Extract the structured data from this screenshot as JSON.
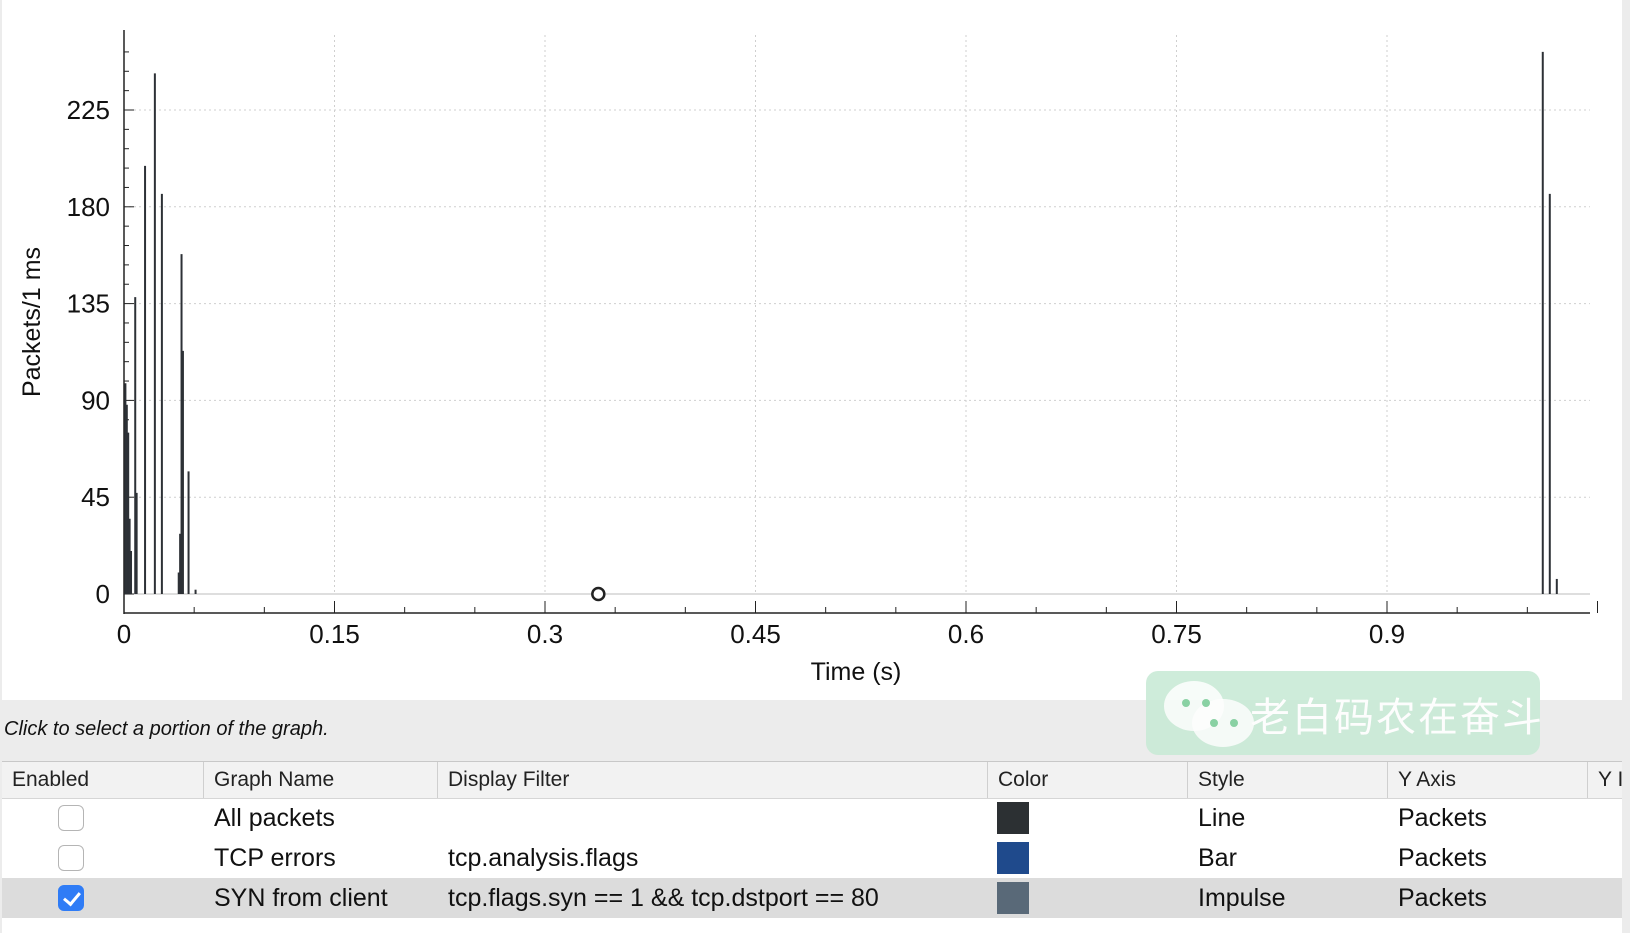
{
  "chart_data": {
    "type": "bar",
    "style": "impulse",
    "xlabel": "Time (s)",
    "ylabel": "Packets/1 ms",
    "xlim": [
      0,
      1.05
    ],
    "ylim": [
      0,
      260
    ],
    "x_ticks": [
      "0",
      "0.15",
      "0.3",
      "0.45",
      "0.6",
      "0.75",
      "0.9"
    ],
    "x_tick_values": [
      0,
      0.15,
      0.3,
      0.45,
      0.6,
      0.75,
      0.9
    ],
    "y_ticks": [
      "0",
      "45",
      "90",
      "135",
      "180",
      "225"
    ],
    "y_tick_values": [
      0,
      45,
      90,
      135,
      180,
      225
    ],
    "grid": true,
    "line_color": "#2d3136",
    "series": [
      {
        "name": "SYN from client",
        "x": [
          0.001,
          0.002,
          0.003,
          0.004,
          0.005,
          0.008,
          0.009,
          0.015,
          0.022,
          0.027,
          0.039,
          0.04,
          0.041,
          0.042,
          0.046,
          0.051,
          1.011,
          1.016,
          1.021
        ],
        "values": [
          98,
          88,
          75,
          35,
          20,
          138,
          47,
          199,
          242,
          186,
          10,
          28,
          158,
          113,
          57,
          2,
          252,
          186,
          7
        ]
      }
    ],
    "cursor_marker": {
      "x": 0.338,
      "y": 0
    }
  },
  "hint": "Click to select a portion of the graph.",
  "watermark": {
    "text": "老白码农在奋斗"
  },
  "table": {
    "headers": [
      "Enabled",
      "Graph Name",
      "Display Filter",
      "Color",
      "Style",
      "Y Axis",
      "Y I"
    ],
    "rows": [
      {
        "enabled": false,
        "name": "All packets",
        "filter": "",
        "color": "#2c3033",
        "style": "Line",
        "y_axis": "Packets",
        "selected": false
      },
      {
        "enabled": false,
        "name": "TCP errors",
        "filter": "tcp.analysis.flags",
        "color": "#1f4a8c",
        "style": "Bar",
        "y_axis": "Packets",
        "selected": false
      },
      {
        "enabled": true,
        "name": "SYN from client",
        "filter": "tcp.flags.syn == 1 && tcp.dstport == 80",
        "color": "#596978",
        "style": "Impulse",
        "y_axis": "Packets",
        "selected": true
      }
    ]
  }
}
